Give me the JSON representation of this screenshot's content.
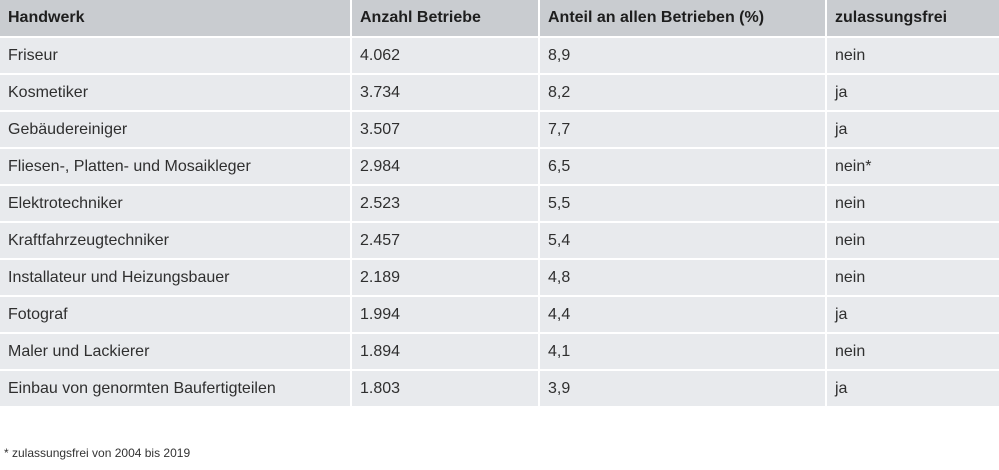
{
  "table": {
    "headers": [
      "Handwerk",
      "Anzahl Betriebe",
      "Anteil an allen Betrieben (%)",
      "zulassungsfrei"
    ],
    "rows": [
      [
        "Friseur",
        "4.062",
        "8,9",
        "nein"
      ],
      [
        "Kosmetiker",
        "3.734",
        "8,2",
        "ja"
      ],
      [
        "Gebäudereiniger",
        "3.507",
        "7,7",
        "ja"
      ],
      [
        "Fliesen-, Platten- und Mosaikleger",
        "2.984",
        "6,5",
        "nein*"
      ],
      [
        "Elektrotechniker",
        "2.523",
        "5,5",
        "nein"
      ],
      [
        "Kraftfahrzeugtechniker",
        "2.457",
        "5,4",
        "nein"
      ],
      [
        "Installateur und Heizungsbauer",
        "2.189",
        "4,8",
        "nein"
      ],
      [
        "Fotograf",
        "1.994",
        "4,4",
        "ja"
      ],
      [
        "Maler und Lackierer",
        "1.894",
        "4,1",
        "nein"
      ],
      [
        "Einbau von genormten Baufertigteilen",
        "1.803",
        "3,9",
        "ja"
      ]
    ]
  },
  "footnote": "* zulassungsfrei von 2004 bis 2019",
  "colors": {
    "header_bg": "#c9ccd0",
    "row_bg": "#e8eaed"
  }
}
